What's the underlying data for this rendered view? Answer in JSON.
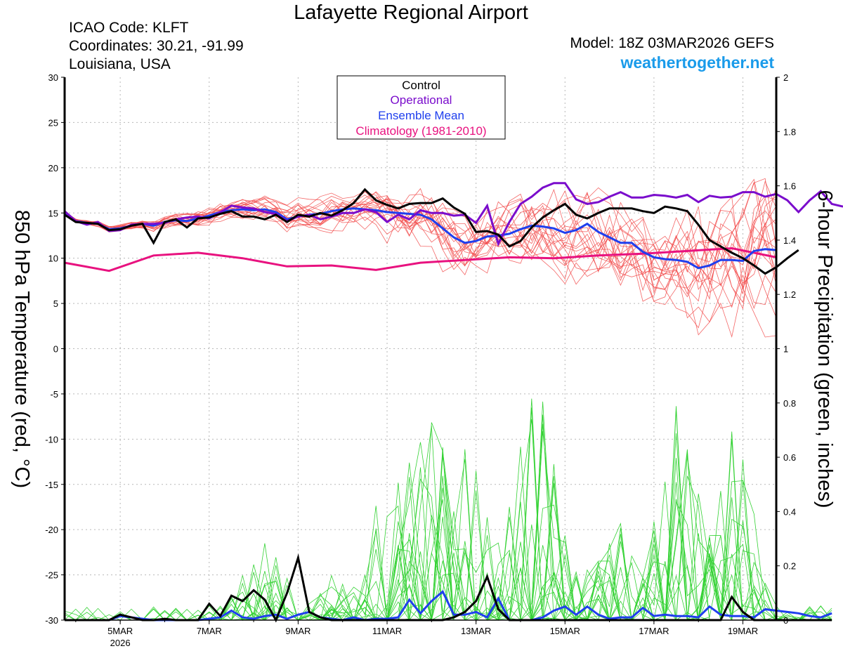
{
  "header": {
    "title": "Lafayette Regional Airport",
    "icao": "ICAO Code: KLFT",
    "coords": "Coordinates: 30.21, -91.99",
    "location": "Louisiana, USA",
    "model": "Model: 18Z 03MAR2026 GEFS",
    "site": "weathertogether.net"
  },
  "colors": {
    "control": "#000000",
    "operational": "#7a0ccc",
    "ensemble_mean": "#1f3fee",
    "climatology": "#e8127f",
    "members_temp": "#f24b4b",
    "members_precip": "#34d234",
    "site": "#1a9bea"
  },
  "chart_data": {
    "type": "line",
    "xlabel": "",
    "ylabel": "850 hPa Temperature (red, °C)",
    "ylabel2": "6-hour Precipitation (green, inches)",
    "ylim": [
      -30,
      30
    ],
    "ylim2": [
      0,
      2
    ],
    "xlim": [
      3.75,
      19.75
    ],
    "yticks": [
      -30,
      -25,
      -20,
      -15,
      -10,
      -5,
      0,
      5,
      10,
      15,
      20,
      25,
      30
    ],
    "yticks2": [
      "0",
      "0.2",
      "0.4",
      "0.6",
      "0.8",
      "1",
      "1.2",
      "1.4",
      "1.6",
      "1.8",
      "2"
    ],
    "xticks": [
      {
        "day": 5,
        "label": "5MAR",
        "sub": "2026"
      },
      {
        "day": 7,
        "label": "7MAR",
        "sub": ""
      },
      {
        "day": 9,
        "label": "9MAR",
        "sub": ""
      },
      {
        "day": 11,
        "label": "11MAR",
        "sub": ""
      },
      {
        "day": 13,
        "label": "13MAR",
        "sub": ""
      },
      {
        "day": 15,
        "label": "15MAR",
        "sub": ""
      },
      {
        "day": 17,
        "label": "17MAR",
        "sub": ""
      },
      {
        "day": 19,
        "label": "19MAR",
        "sub": ""
      }
    ],
    "legend": {
      "position": "top-center",
      "entries": [
        "Control",
        "Operational",
        "Ensemble Mean",
        "Climatology (1981-2010)"
      ]
    },
    "x_start_day": 3.75,
    "x_step_days": 0.25,
    "temperature": {
      "control": [
        14.8,
        14.0,
        13.9,
        13.8,
        13.1,
        13.2,
        13.6,
        13.8,
        11.7,
        14.0,
        14.3,
        13.4,
        14.4,
        14.5,
        14.9,
        15.2,
        14.6,
        14.6,
        14.3,
        14.8,
        14.0,
        14.8,
        14.6,
        15.0,
        14.7,
        15.3,
        16.1,
        17.6,
        16.4,
        15.9,
        15.5,
        16.0,
        16.1,
        16.1,
        16.6,
        15.6,
        14.9,
        12.9,
        13.0,
        12.6,
        11.3,
        11.9,
        13.4,
        14.5,
        15.3,
        16.0,
        14.8,
        14.4,
        15.0,
        15.5,
        15.5,
        15.5,
        15.2,
        15.0,
        15.7,
        15.5,
        15.2,
        13.7,
        12.0,
        11.3,
        10.6,
        10.0,
        9.2,
        8.3,
        9.0,
        10.0,
        10.9
      ],
      "operational": [
        15.2,
        14.1,
        13.7,
        14.0,
        13.0,
        13.1,
        13.7,
        13.8,
        13.8,
        13.9,
        14.3,
        14.5,
        14.6,
        14.4,
        15.1,
        15.8,
        15.6,
        15.5,
        15.1,
        14.9,
        14.1,
        14.6,
        14.8,
        14.3,
        14.6,
        15.0,
        15.0,
        15.4,
        15.1,
        14.0,
        14.8,
        14.3,
        15.3,
        15.0,
        15.0,
        14.7,
        14.8,
        13.9,
        15.8,
        11.6,
        14.0,
        16.0,
        16.8,
        17.8,
        18.3,
        18.3,
        16.5,
        16.0,
        16.2,
        16.8,
        17.3,
        16.7,
        16.7,
        17.0,
        16.9,
        16.7,
        17.0,
        16.2,
        16.9,
        16.7,
        16.8,
        17.3,
        17.3,
        16.8,
        17.1,
        16.4,
        15.1,
        16.4,
        17.4,
        16.0,
        15.7
      ],
      "ensemble_mean": [
        15.0,
        14.1,
        13.9,
        13.8,
        13.2,
        13.3,
        13.6,
        13.8,
        13.6,
        14.0,
        14.2,
        14.1,
        14.4,
        14.7,
        15.1,
        15.3,
        15.4,
        15.3,
        15.4,
        15.1,
        14.3,
        14.6,
        14.8,
        14.9,
        15.2,
        15.4,
        15.5,
        15.4,
        15.3,
        15.1,
        15.0,
        14.9,
        14.8,
        14.3,
        13.3,
        12.3,
        11.7,
        11.9,
        12.4,
        12.5,
        12.7,
        13.2,
        13.6,
        13.5,
        13.3,
        12.8,
        13.1,
        13.8,
        12.9,
        12.3,
        11.7,
        11.7,
        10.7,
        10.1,
        9.9,
        9.8,
        9.6,
        8.9,
        9.2,
        9.8,
        9.8,
        9.7,
        10.8,
        11.0,
        10.9
      ],
      "climatology_x": [
        3.75,
        4.75,
        5.75,
        6.75,
        7.75,
        8.75,
        9.75,
        10.75,
        11.75,
        12.75,
        13.75,
        14.75,
        15.75,
        16.75,
        17.75,
        18.75,
        19.75
      ],
      "climatology": [
        9.5,
        8.6,
        10.3,
        10.6,
        10.0,
        9.1,
        9.2,
        8.7,
        9.5,
        9.8,
        10.1,
        10.0,
        10.3,
        10.5,
        10.8,
        11.1,
        10.1
      ]
    },
    "precipitation": {
      "control": [
        0,
        0,
        0,
        0,
        0,
        0.02,
        0.01,
        0,
        0,
        0.005,
        0,
        0,
        0,
        0.06,
        0.015,
        0.09,
        0.07,
        0.11,
        0.075,
        0,
        0.1,
        0.23,
        0.03,
        0.01,
        0,
        0,
        0,
        0,
        0,
        0,
        0,
        0,
        0,
        0,
        0,
        0.01,
        0.03,
        0.07,
        0.16,
        0.04,
        0,
        0,
        0,
        0,
        0,
        0,
        0,
        0,
        0,
        0,
        0,
        0,
        0,
        0,
        0,
        0,
        0,
        0,
        0,
        0,
        0.085,
        0.03,
        0,
        0,
        0,
        0,
        0,
        0,
        0,
        0
      ],
      "ensemble_mean": [
        0,
        0,
        0,
        0,
        0,
        0.015,
        0.01,
        0.005,
        0,
        0,
        0,
        0,
        0,
        0.005,
        0.01,
        0.035,
        0.01,
        0.005,
        0.015,
        0.02,
        0.005,
        0.02,
        0.03,
        0.01,
        0.005,
        0,
        0.01,
        0,
        0.005,
        0.005,
        0.01,
        0.075,
        0.025,
        0.07,
        0.105,
        0.02,
        0.02,
        0.03,
        0.01,
        0.08,
        0,
        0,
        0,
        0.01,
        0.035,
        0.05,
        0.02,
        0.05,
        0.02,
        0.005,
        0.01,
        0.01,
        0.045,
        0.015,
        0.02,
        0.015,
        0.015,
        0.01,
        0.05,
        0.02,
        0.015,
        0.015,
        0.01,
        0.04,
        0.035,
        0.03,
        0.025,
        0.015,
        0.01,
        0.025
      ]
    }
  }
}
